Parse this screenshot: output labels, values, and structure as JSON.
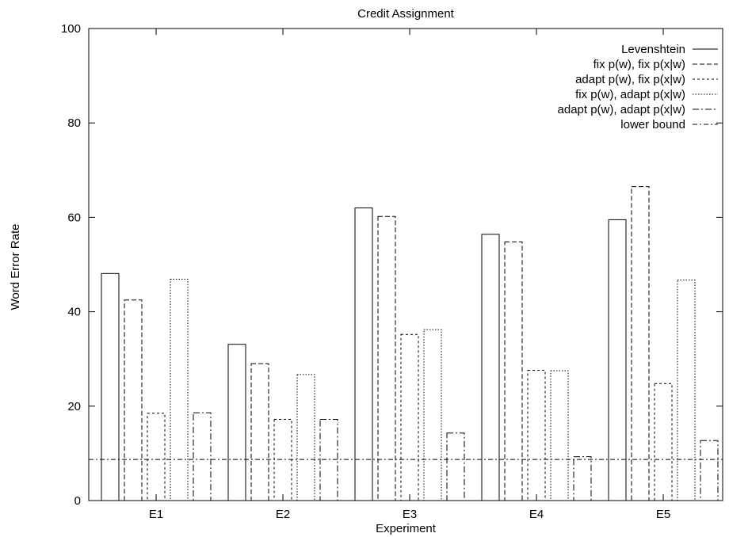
{
  "chart_data": {
    "type": "bar",
    "title": "Credit Assignment",
    "xlabel": "Experiment",
    "ylabel": "Word Error Rate",
    "ylim": [
      0,
      100
    ],
    "yticks": [
      0,
      20,
      40,
      60,
      80,
      100
    ],
    "categories": [
      "E1",
      "E2",
      "E3",
      "E4",
      "E5"
    ],
    "legend_position": "top-right",
    "grid": false,
    "series": [
      {
        "name": "Levenshtein",
        "values": [
          48.1,
          33.1,
          62.0,
          56.4,
          59.5
        ]
      },
      {
        "name": "fix p(w), fix p(x|w)",
        "values": [
          42.5,
          29.0,
          60.2,
          54.8,
          66.5
        ]
      },
      {
        "name": "adapt p(w), fix p(x|w)",
        "values": [
          18.5,
          17.2,
          35.2,
          27.6,
          24.8
        ]
      },
      {
        "name": "fix p(w), adapt p(x|w)",
        "values": [
          46.9,
          26.7,
          36.2,
          27.5,
          46.7
        ]
      },
      {
        "name": "adapt p(w), adapt p(x|w)",
        "values": [
          18.6,
          17.2,
          14.3,
          9.3,
          12.7
        ]
      }
    ],
    "reference_lines": [
      {
        "name": "lower bound",
        "value": 8.7
      }
    ]
  }
}
